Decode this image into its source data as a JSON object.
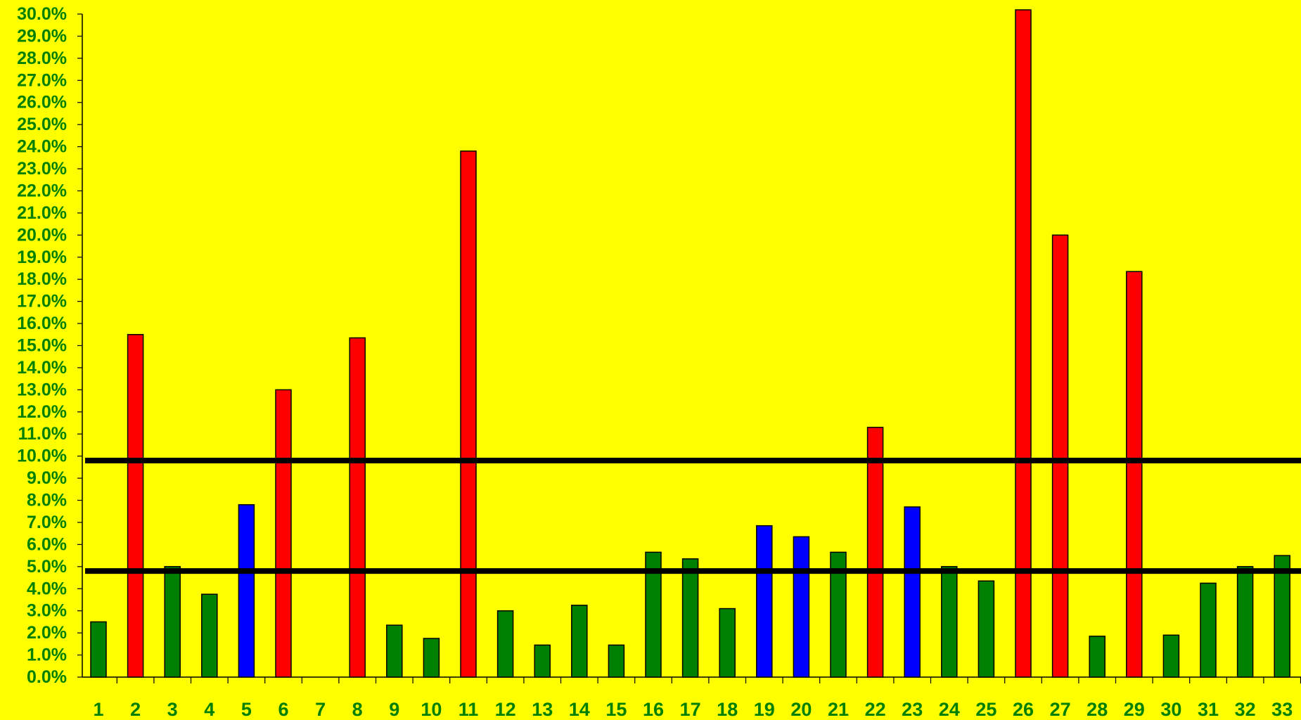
{
  "chart_data": {
    "type": "bar",
    "title": "",
    "xlabel": "",
    "ylabel": "",
    "categories": [
      "1",
      "2",
      "3",
      "4",
      "5",
      "6",
      "7",
      "8",
      "9",
      "10",
      "11",
      "12",
      "13",
      "14",
      "15",
      "16",
      "17",
      "18",
      "19",
      "20",
      "21",
      "22",
      "23",
      "24",
      "25",
      "26",
      "27",
      "28",
      "29",
      "30",
      "31",
      "32",
      "33"
    ],
    "values": [
      2.5,
      15.5,
      5.0,
      3.75,
      7.8,
      13.0,
      0.0,
      15.35,
      2.35,
      1.75,
      23.8,
      3.0,
      1.45,
      3.25,
      1.45,
      5.65,
      5.35,
      3.1,
      6.85,
      6.35,
      5.65,
      11.3,
      7.7,
      5.0,
      4.35,
      30.2,
      20.0,
      1.85,
      18.35,
      1.9,
      4.25,
      5.0,
      5.5
    ],
    "bar_colors": [
      "#008000",
      "#ff0000",
      "#008000",
      "#008000",
      "#0000ff",
      "#ff0000",
      "#008000",
      "#ff0000",
      "#008000",
      "#008000",
      "#ff0000",
      "#008000",
      "#008000",
      "#008000",
      "#008000",
      "#008000",
      "#008000",
      "#008000",
      "#0000ff",
      "#0000ff",
      "#008000",
      "#ff0000",
      "#0000ff",
      "#008000",
      "#008000",
      "#ff0000",
      "#ff0000",
      "#008000",
      "#ff0000",
      "#008000",
      "#008000",
      "#008000",
      "#008000"
    ],
    "ylim": [
      0,
      30
    ],
    "ytick_step": 1,
    "ytick_format": "percent_one_decimal",
    "reference_lines": [
      9.8,
      4.8
    ],
    "grid": false,
    "legend": "none",
    "colors": {
      "background": "#ffff00",
      "label": "#008000",
      "red": "#ff0000",
      "green": "#008000",
      "blue": "#0000ff",
      "reference_line": "#000000"
    }
  }
}
